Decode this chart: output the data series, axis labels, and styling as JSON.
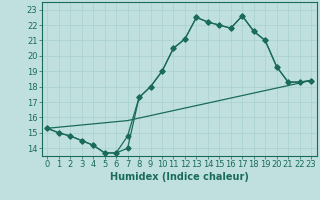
{
  "xlabel": "Humidex (Indice chaleur)",
  "bg_color": "#c0e0e0",
  "line_color": "#1a6b5a",
  "grid_color": "#a8d0d0",
  "xlim": [
    -0.5,
    23.5
  ],
  "ylim": [
    13.5,
    23.5
  ],
  "xticks": [
    0,
    1,
    2,
    3,
    4,
    5,
    6,
    7,
    8,
    9,
    10,
    11,
    12,
    13,
    14,
    15,
    16,
    17,
    18,
    19,
    20,
    21,
    22,
    23
  ],
  "yticks": [
    14,
    15,
    16,
    17,
    18,
    19,
    20,
    21,
    22,
    23
  ],
  "line1_x": [
    0,
    1,
    2,
    3,
    4,
    5,
    6,
    7,
    8,
    9,
    10,
    11,
    12,
    13,
    14,
    15,
    16,
    17,
    18,
    19,
    20,
    21,
    22,
    23
  ],
  "line1_y": [
    15.3,
    15.0,
    14.8,
    14.5,
    14.2,
    13.7,
    13.7,
    14.8,
    17.3,
    18.0,
    19.0,
    20.5,
    21.1,
    22.5,
    22.2,
    22.0,
    21.8,
    22.6,
    21.6,
    21.0,
    19.3,
    18.3,
    18.3,
    18.4
  ],
  "line2_x": [
    0,
    1,
    2,
    3,
    4,
    5,
    6,
    7,
    8,
    9,
    10,
    11,
    12,
    13,
    14,
    15,
    16,
    17,
    18,
    19,
    20,
    21,
    22,
    23
  ],
  "line2_y": [
    15.3,
    15.0,
    14.8,
    14.5,
    14.2,
    13.7,
    13.7,
    14.0,
    17.3,
    18.0,
    19.0,
    20.5,
    21.1,
    22.5,
    22.2,
    22.0,
    21.8,
    22.6,
    21.6,
    21.0,
    19.3,
    18.3,
    18.3,
    18.4
  ],
  "line3_x": [
    0,
    7,
    23
  ],
  "line3_y": [
    15.3,
    15.8,
    18.4
  ],
  "label_fontsize": 7,
  "tick_fontsize": 6
}
